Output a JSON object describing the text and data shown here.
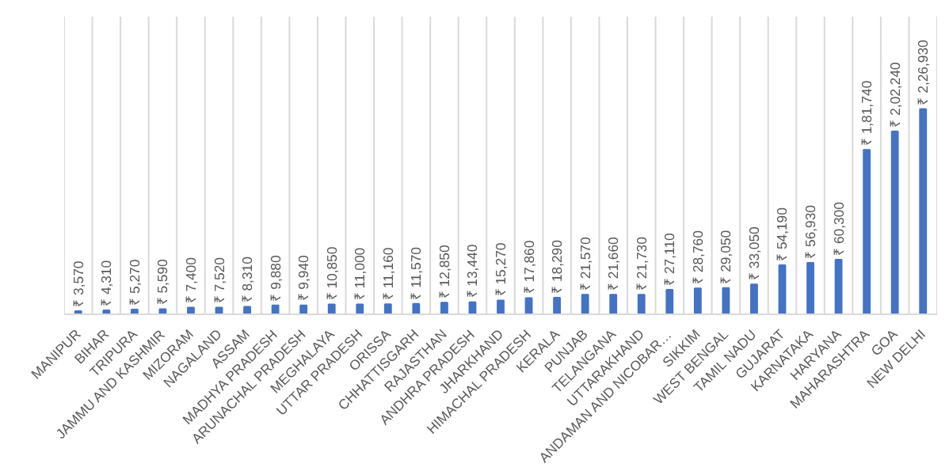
{
  "chart_data": {
    "type": "bar",
    "categories": [
      "MANIPUR",
      "BIHAR",
      "TRIPURA",
      "JAMMU AND KASHMIR",
      "MIZORAM",
      "NAGALAND",
      "ASSAM",
      "MADHYA PRADESH",
      "ARUNACHAL PRADESH",
      "MEGHALAYA",
      "UTTAR PRADESH",
      "ORISSA",
      "CHHATTISGARH",
      "RAJASTHAN",
      "ANDHRA PRADESH",
      "JHARKHAND",
      "HIMACHAL PRADESH",
      "KERALA",
      "PUNJAB",
      "TELANGANA",
      "UTTARAKHAND",
      "ANDAMAN AND NICOBAR…",
      "SIKKIM",
      "WEST BENGAL",
      "TAMIL NADU",
      "GUJARAT",
      "KARNATAKA",
      "HARYANA",
      "MAHARASHTRA",
      "GOA",
      "NEW DELHI"
    ],
    "values": [
      3570,
      4310,
      5270,
      5590,
      7400,
      7520,
      8310,
      9880,
      9940,
      10850,
      11000,
      11160,
      11570,
      12850,
      13440,
      15270,
      17860,
      18290,
      21570,
      21660,
      21730,
      27110,
      28760,
      29050,
      33050,
      54190,
      56930,
      60300,
      181740,
      202240,
      226930
    ],
    "value_labels": [
      "₹ 3,570",
      "₹ 4,310",
      "₹ 5,270",
      "₹ 5,590",
      "₹ 7,400",
      "₹ 7,520",
      "₹ 8,310",
      "₹ 9,880",
      "₹ 9,940",
      "₹ 10,850",
      "₹ 11,000",
      "₹ 11,160",
      "₹ 11,570",
      "₹ 12,850",
      "₹ 13,440",
      "₹ 15,270",
      "₹ 17,860",
      "₹ 18,290",
      "₹ 21,570",
      "₹ 21,660",
      "₹ 21,730",
      "₹ 27,110",
      "₹ 28,760",
      "₹ 29,050",
      "₹ 33,050",
      "₹ 54,190",
      "₹ 56,930",
      "₹ 60,300",
      "₹ 1,81,740",
      "₹ 2,02,240",
      "₹ 2,26,930"
    ],
    "color": "#4472c4",
    "grid": "x"
  }
}
